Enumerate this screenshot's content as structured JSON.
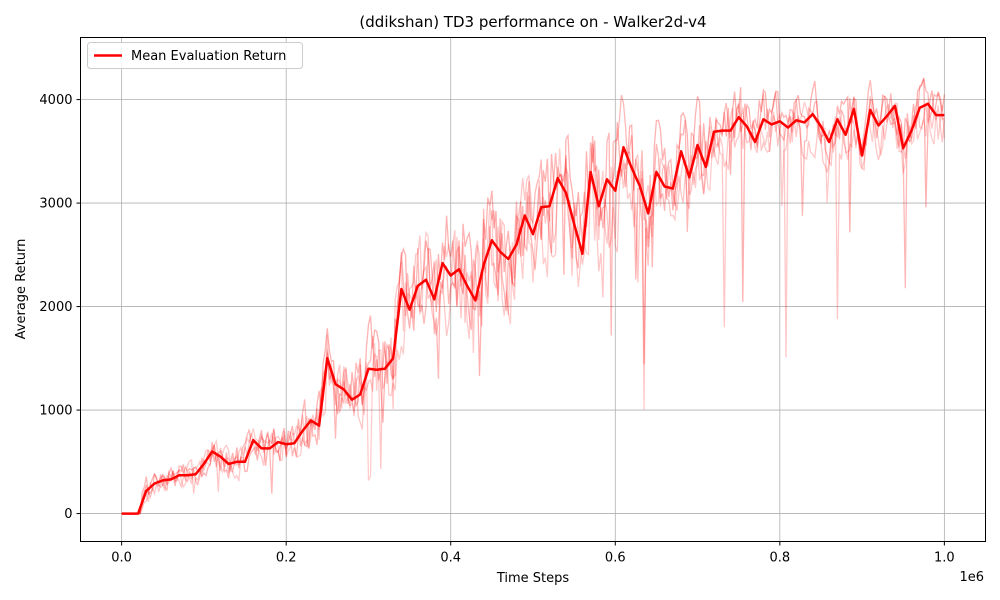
{
  "chart_data": {
    "type": "line",
    "title": "(ddikshan) TD3 performance on - Walker2d-v4",
    "xlabel": "Time Steps",
    "ylabel": "Average Return",
    "x_offset_label": "1e6",
    "xlim": [
      -50000,
      1050000
    ],
    "ylim": [
      -270,
      4600
    ],
    "xticks": [
      0.0,
      0.2,
      0.4,
      0.6,
      0.8,
      1.0
    ],
    "xtick_labels": [
      "0.0",
      "0.2",
      "0.4",
      "0.6",
      "0.8",
      "1.0"
    ],
    "yticks": [
      0,
      1000,
      2000,
      3000,
      4000
    ],
    "ytick_labels": [
      "0",
      "1000",
      "2000",
      "3000",
      "4000"
    ],
    "grid": true,
    "legend": {
      "position": "top-left",
      "entries": [
        "Mean Evaluation Return"
      ]
    },
    "colors": {
      "mean": "#ff0000",
      "run": "#ff0000"
    },
    "series": [
      {
        "name": "Mean Evaluation Return",
        "x": [
          0,
          10000,
          20000,
          30000,
          40000,
          50000,
          60000,
          70000,
          80000,
          90000,
          100000,
          110000,
          120000,
          130000,
          140000,
          150000,
          160000,
          170000,
          180000,
          190000,
          200000,
          210000,
          220000,
          230000,
          240000,
          250000,
          260000,
          270000,
          280000,
          290000,
          300000,
          310000,
          320000,
          330000,
          340000,
          350000,
          360000,
          370000,
          380000,
          390000,
          400000,
          410000,
          420000,
          430000,
          440000,
          450000,
          460000,
          470000,
          480000,
          490000,
          500000,
          510000,
          520000,
          530000,
          540000,
          550000,
          560000,
          570000,
          580000,
          590000,
          600000,
          610000,
          620000,
          630000,
          640000,
          650000,
          660000,
          670000,
          680000,
          690000,
          700000,
          710000,
          720000,
          730000,
          740000,
          750000,
          760000,
          770000,
          780000,
          790000,
          800000,
          810000,
          820000,
          830000,
          840000,
          850000,
          860000,
          870000,
          880000,
          890000,
          900000,
          910000,
          920000,
          930000,
          940000,
          950000,
          960000,
          970000,
          980000,
          990000,
          1000000
        ],
        "values": [
          0,
          0,
          0,
          220,
          290,
          320,
          330,
          370,
          370,
          380,
          480,
          600,
          550,
          480,
          500,
          500,
          710,
          630,
          630,
          690,
          670,
          680,
          800,
          900,
          850,
          1500,
          1250,
          1200,
          1100,
          1150,
          1400,
          1390,
          1400,
          1500,
          2170,
          1970,
          2200,
          2260,
          2070,
          2420,
          2300,
          2360,
          2200,
          2060,
          2400,
          2640,
          2530,
          2460,
          2600,
          2880,
          2700,
          2960,
          2970,
          3240,
          3100,
          2800,
          2510,
          3300,
          2970,
          3230,
          3120,
          3540,
          3340,
          3160,
          2900,
          3300,
          3160,
          3140,
          3500,
          3250,
          3560,
          3350,
          3690,
          3700,
          3700,
          3830,
          3740,
          3590,
          3810,
          3760,
          3790,
          3730,
          3800,
          3780,
          3860,
          3740,
          3590,
          3810,
          3660,
          3910,
          3460,
          3900,
          3750,
          3840,
          3940,
          3530,
          3700,
          3920,
          3960,
          3850,
          3850
        ]
      }
    ],
    "individual_runs": {
      "count": 4,
      "spread_by_x": [
        [
          0,
          0
        ],
        [
          30000,
          180
        ],
        [
          60000,
          150
        ],
        [
          100000,
          180
        ],
        [
          150000,
          220
        ],
        [
          200000,
          260
        ],
        [
          250000,
          420
        ],
        [
          300000,
          500
        ],
        [
          350000,
          650
        ],
        [
          400000,
          700
        ],
        [
          450000,
          700
        ],
        [
          500000,
          700
        ],
        [
          550000,
          720
        ],
        [
          600000,
          650
        ],
        [
          650000,
          550
        ],
        [
          700000,
          480
        ],
        [
          750000,
          350
        ],
        [
          800000,
          320
        ],
        [
          850000,
          320
        ],
        [
          900000,
          330
        ],
        [
          950000,
          330
        ],
        [
          1000000,
          330
        ]
      ],
      "max_values": [
        830,
        1830,
        3050,
        3740,
        3910,
        4090,
        4130,
        4230,
        4370,
        4460
      ]
    }
  }
}
